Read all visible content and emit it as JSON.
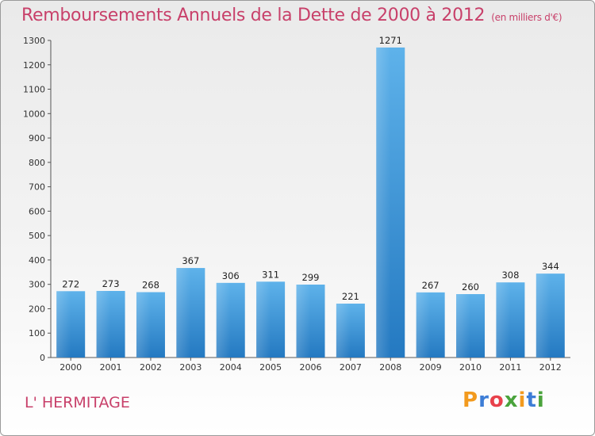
{
  "header": {
    "title": "Remboursements Annuels de la Dette de 2000 à 2012",
    "unit": "(en milliers d'€)"
  },
  "footer": {
    "commune": "L' HERMITAGE",
    "logo_text": "Proxiti"
  },
  "colors": {
    "title": "#c8406a",
    "bar": "#4aa3e2",
    "bar_dark": "#1f78c0",
    "logo": [
      "#f29a1e",
      "#3d7dd6",
      "#e8414b",
      "#4aa33c",
      "#f29a1e",
      "#3d7dd6",
      "#4aa33c"
    ]
  },
  "chart_data": {
    "type": "bar",
    "title": "Remboursements Annuels de la Dette de 2000 à 2012",
    "subtitle": "(en milliers d'€)",
    "categories": [
      "2000",
      "2001",
      "2002",
      "2003",
      "2004",
      "2005",
      "2006",
      "2007",
      "2008",
      "2009",
      "2010",
      "2011",
      "2012"
    ],
    "values": [
      272,
      273,
      268,
      367,
      306,
      311,
      299,
      221,
      1271,
      267,
      260,
      308,
      344
    ],
    "ylim": [
      0,
      1300
    ],
    "yticks": [
      0,
      100,
      200,
      300,
      400,
      500,
      600,
      700,
      800,
      900,
      1000,
      1100,
      1200,
      1300
    ],
    "grid": false,
    "legend": "none"
  }
}
